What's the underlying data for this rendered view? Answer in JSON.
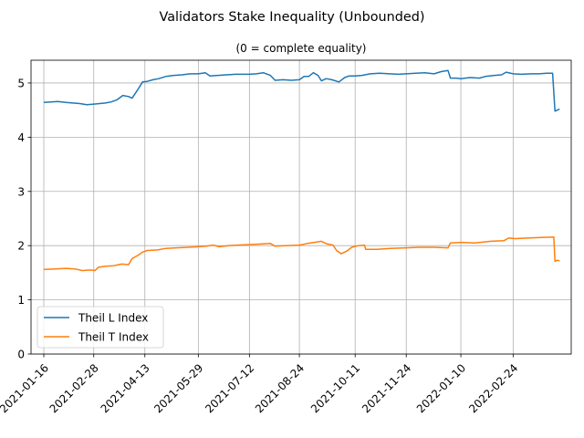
{
  "chart_data": {
    "type": "line",
    "title": "Validators Stake Inequality (Unbounded)",
    "subtitle": "(0 = complete equality)",
    "xlabel": "",
    "ylabel": "",
    "x_axis_type": "date",
    "xlim": [
      "2021-01-05",
      "2022-04-15"
    ],
    "ylim": [
      0,
      5.42
    ],
    "x_ticks": [
      "2021-01-16",
      "2021-02-28",
      "2021-04-13",
      "2021-05-29",
      "2021-07-12",
      "2021-08-24",
      "2021-10-11",
      "2021-11-24",
      "2022-01-10",
      "2022-02-24"
    ],
    "y_ticks": [
      0,
      1,
      2,
      3,
      4,
      5
    ],
    "grid": true,
    "legend_position": "lower-left",
    "series": [
      {
        "name": "Theil L Index",
        "color": "#1f77b4",
        "points": [
          [
            "2021-01-16",
            4.64
          ],
          [
            "2021-01-22",
            4.65
          ],
          [
            "2021-01-28",
            4.66
          ],
          [
            "2021-02-04",
            4.64
          ],
          [
            "2021-02-10",
            4.63
          ],
          [
            "2021-02-16",
            4.62
          ],
          [
            "2021-02-22",
            4.6
          ],
          [
            "2021-02-28",
            4.61
          ],
          [
            "2021-03-05",
            4.62
          ],
          [
            "2021-03-10",
            4.63
          ],
          [
            "2021-03-15",
            4.65
          ],
          [
            "2021-03-20",
            4.69
          ],
          [
            "2021-03-25",
            4.77
          ],
          [
            "2021-03-30",
            4.75
          ],
          [
            "2021-04-02",
            4.72
          ],
          [
            "2021-04-07",
            4.88
          ],
          [
            "2021-04-11",
            5.02
          ],
          [
            "2021-04-15",
            5.03
          ],
          [
            "2021-04-20",
            5.06
          ],
          [
            "2021-04-25",
            5.08
          ],
          [
            "2021-05-01",
            5.12
          ],
          [
            "2021-05-08",
            5.14
          ],
          [
            "2021-05-15",
            5.15
          ],
          [
            "2021-05-22",
            5.17
          ],
          [
            "2021-05-29",
            5.17
          ],
          [
            "2021-06-04",
            5.19
          ],
          [
            "2021-06-08",
            5.13
          ],
          [
            "2021-06-15",
            5.14
          ],
          [
            "2021-06-22",
            5.15
          ],
          [
            "2021-06-30",
            5.16
          ],
          [
            "2021-07-06",
            5.16
          ],
          [
            "2021-07-12",
            5.16
          ],
          [
            "2021-07-18",
            5.17
          ],
          [
            "2021-07-24",
            5.19
          ],
          [
            "2021-07-30",
            5.14
          ],
          [
            "2021-08-03",
            5.05
          ],
          [
            "2021-08-10",
            5.06
          ],
          [
            "2021-08-17",
            5.05
          ],
          [
            "2021-08-24",
            5.06
          ],
          [
            "2021-08-28",
            5.12
          ],
          [
            "2021-09-01",
            5.12
          ],
          [
            "2021-09-05",
            5.19
          ],
          [
            "2021-09-09",
            5.14
          ],
          [
            "2021-09-12",
            5.04
          ],
          [
            "2021-09-16",
            5.08
          ],
          [
            "2021-09-21",
            5.06
          ],
          [
            "2021-09-27",
            5.02
          ],
          [
            "2021-10-02",
            5.1
          ],
          [
            "2021-10-06",
            5.13
          ],
          [
            "2021-10-11",
            5.13
          ],
          [
            "2021-10-17",
            5.14
          ],
          [
            "2021-10-24",
            5.17
          ],
          [
            "2021-11-01",
            5.18
          ],
          [
            "2021-11-10",
            5.17
          ],
          [
            "2021-11-17",
            5.16
          ],
          [
            "2021-11-24",
            5.17
          ],
          [
            "2021-12-02",
            5.18
          ],
          [
            "2021-12-10",
            5.19
          ],
          [
            "2021-12-18",
            5.17
          ],
          [
            "2021-12-24",
            5.21
          ],
          [
            "2021-12-30",
            5.23
          ],
          [
            "2022-01-01",
            5.09
          ],
          [
            "2022-01-06",
            5.09
          ],
          [
            "2022-01-10",
            5.08
          ],
          [
            "2022-01-18",
            5.1
          ],
          [
            "2022-01-26",
            5.09
          ],
          [
            "2022-01-31",
            5.12
          ],
          [
            "2022-02-08",
            5.14
          ],
          [
            "2022-02-14",
            5.15
          ],
          [
            "2022-02-18",
            5.2
          ],
          [
            "2022-02-24",
            5.17
          ],
          [
            "2022-03-03",
            5.16
          ],
          [
            "2022-03-12",
            5.17
          ],
          [
            "2022-03-18",
            5.17
          ],
          [
            "2022-03-25",
            5.18
          ],
          [
            "2022-03-30",
            5.18
          ],
          [
            "2022-04-01",
            4.48
          ],
          [
            "2022-04-03",
            4.5
          ],
          [
            "2022-04-05",
            4.52
          ]
        ]
      },
      {
        "name": "Theil T Index",
        "color": "#ff7f0e",
        "points": [
          [
            "2021-01-16",
            1.56
          ],
          [
            "2021-01-26",
            1.57
          ],
          [
            "2021-02-04",
            1.58
          ],
          [
            "2021-02-12",
            1.57
          ],
          [
            "2021-02-18",
            1.54
          ],
          [
            "2021-02-25",
            1.55
          ],
          [
            "2021-03-01",
            1.54
          ],
          [
            "2021-03-04",
            1.6
          ],
          [
            "2021-03-10",
            1.62
          ],
          [
            "2021-03-17",
            1.63
          ],
          [
            "2021-03-24",
            1.66
          ],
          [
            "2021-03-30",
            1.65
          ],
          [
            "2021-04-02",
            1.76
          ],
          [
            "2021-04-07",
            1.82
          ],
          [
            "2021-04-11",
            1.88
          ],
          [
            "2021-04-15",
            1.91
          ],
          [
            "2021-04-24",
            1.92
          ],
          [
            "2021-05-01",
            1.95
          ],
          [
            "2021-05-10",
            1.96
          ],
          [
            "2021-05-20",
            1.97
          ],
          [
            "2021-05-29",
            1.98
          ],
          [
            "2021-06-05",
            1.99
          ],
          [
            "2021-06-11",
            2.01
          ],
          [
            "2021-06-16",
            1.98
          ],
          [
            "2021-06-24",
            2.0
          ],
          [
            "2021-07-02",
            2.01
          ],
          [
            "2021-07-12",
            2.02
          ],
          [
            "2021-07-22",
            2.03
          ],
          [
            "2021-07-30",
            2.04
          ],
          [
            "2021-08-03",
            1.99
          ],
          [
            "2021-08-12",
            2.0
          ],
          [
            "2021-08-24",
            2.01
          ],
          [
            "2021-08-31",
            2.04
          ],
          [
            "2021-09-06",
            2.06
          ],
          [
            "2021-09-12",
            2.08
          ],
          [
            "2021-09-17",
            2.03
          ],
          [
            "2021-09-22",
            2.01
          ],
          [
            "2021-09-25",
            1.91
          ],
          [
            "2021-09-29",
            1.85
          ],
          [
            "2021-10-04",
            1.9
          ],
          [
            "2021-10-08",
            1.97
          ],
          [
            "2021-10-14",
            2.0
          ],
          [
            "2021-10-19",
            2.01
          ],
          [
            "2021-10-20",
            1.93
          ],
          [
            "2021-10-30",
            1.93
          ],
          [
            "2021-11-10",
            1.95
          ],
          [
            "2021-11-24",
            1.96
          ],
          [
            "2021-12-05",
            1.97
          ],
          [
            "2021-12-18",
            1.97
          ],
          [
            "2021-12-30",
            1.96
          ],
          [
            "2022-01-01",
            2.05
          ],
          [
            "2022-01-10",
            2.06
          ],
          [
            "2022-01-22",
            2.05
          ],
          [
            "2022-02-05",
            2.08
          ],
          [
            "2022-02-16",
            2.09
          ],
          [
            "2022-02-20",
            2.14
          ],
          [
            "2022-02-26",
            2.13
          ],
          [
            "2022-03-08",
            2.14
          ],
          [
            "2022-03-20",
            2.15
          ],
          [
            "2022-03-31",
            2.16
          ],
          [
            "2022-04-01",
            1.71
          ],
          [
            "2022-04-03",
            1.73
          ],
          [
            "2022-04-05",
            1.72
          ]
        ]
      }
    ]
  }
}
